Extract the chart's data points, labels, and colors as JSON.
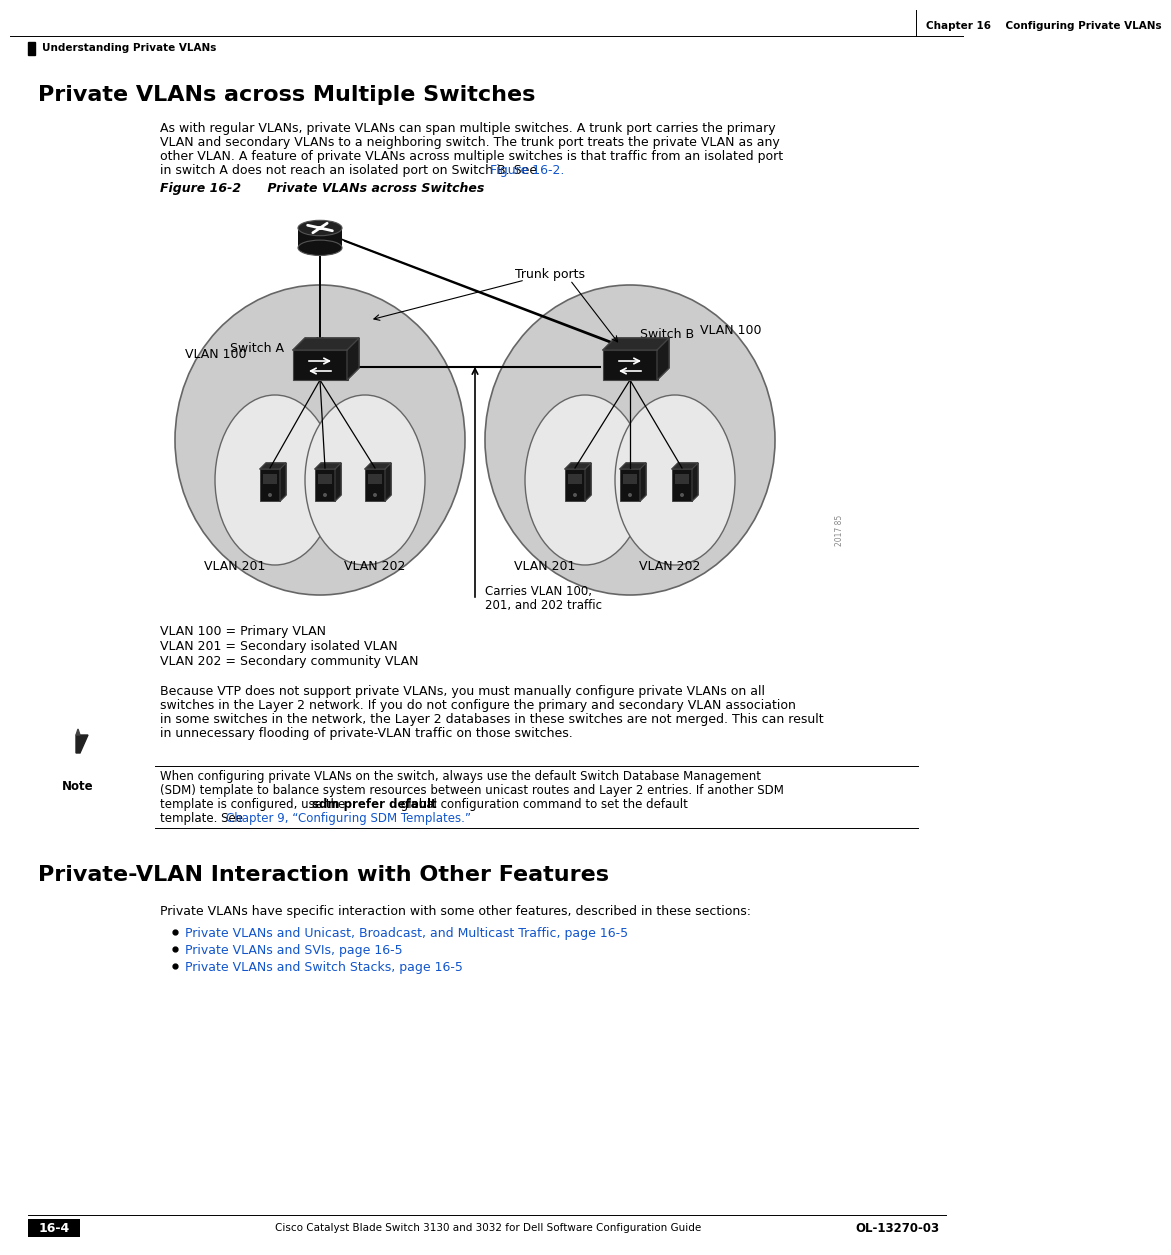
{
  "page_title_right": "Chapter 16    Configuring Private VLANs",
  "page_subtitle_left": "Understanding Private VLANs",
  "section1_title": "Private VLANs across Multiple Switches",
  "body1_line1": "As with regular VLANs, private VLANs can span multiple switches. A trunk port carries the primary",
  "body1_line2": "VLAN and secondary VLANs to a neighboring switch. The trunk port treats the private VLAN as any",
  "body1_line3": "other VLAN. A feature of private VLANs across multiple switches is that traffic from an isolated port",
  "body1_line4_plain": "in switch A does not reach an isolated port on Switch B. See ",
  "body1_line4_link": "Figure 16-2.",
  "figure_label": "Figure 16-2",
  "figure_title": "Private VLANs across Switches",
  "vlan_legend1": "VLAN 100 = Primary VLAN",
  "vlan_legend2": "VLAN 201 = Secondary isolated VLAN",
  "vlan_legend3": "VLAN 202 = Secondary community VLAN",
  "body2_line1": "Because VTP does not support private VLANs, you must manually configure private VLANs on all",
  "body2_line2": "switches in the Layer 2 network. If you do not configure the primary and secondary VLAN association",
  "body2_line3": "in some switches in the network, the Layer 2 databases in these switches are not merged. This can result",
  "body2_line4": "in unnecessary flooding of private-VLAN traffic on those switches.",
  "note_label": "Note",
  "note_line1": "When configuring private VLANs on the switch, always use the default Switch Database Management",
  "note_line2": "(SDM) template to balance system resources between unicast routes and Layer 2 entries. If another SDM",
  "note_line3_plain": "template is configured, use the ",
  "note_line3_bold": "sdm prefer default",
  "note_line3_end": " global configuration command to set the default",
  "note_line4_plain": "template. See ",
  "note_line4_link": "Chapter 9, “Configuring SDM Templates.”",
  "section2_title": "Private-VLAN Interaction with Other Features",
  "section2_intro": "Private VLANs have specific interaction with some other features, described in these sections:",
  "bullet1": "Private VLANs and Unicast, Broadcast, and Multicast Traffic, page 16-5",
  "bullet2": "Private VLANs and SVIs, page 16-5",
  "bullet3": "Private VLANs and Switch Stacks, page 16-5",
  "footer_left": "Cisco Catalyst Blade Switch 3130 and 3032 for Dell Software Configuration Guide",
  "footer_page": "16-4",
  "footer_right": "OL-13270-03",
  "bg_color": "#ffffff",
  "text_color": "#000000",
  "link_color": "#1155cc",
  "fig_ellipse_color": "#cccccc",
  "fig_ellipse_edge": "#666666",
  "fig_inner_ellipse_color": "#e8e8e8",
  "switch_color": "#1a1a1a",
  "server_color": "#1a1a1a"
}
